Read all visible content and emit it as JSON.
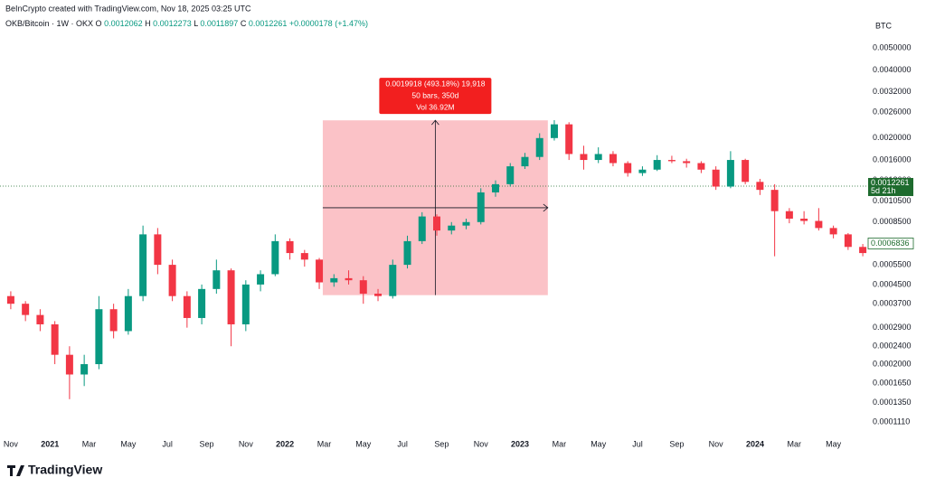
{
  "header": {
    "credit": "BeInCrypto created with TradingView.com, Nov 18, 2025 03:25 UTC",
    "symbol": "OKB/Bitcoin · 1W · OKX",
    "ohlc": [
      {
        "key": "O",
        "value": "0.0012062"
      },
      {
        "key": "H",
        "value": "0.0012273"
      },
      {
        "key": "L",
        "value": "0.0011897"
      },
      {
        "key": "C",
        "value": "0.0012261"
      }
    ],
    "change": "+0.0000178 (+1.47%)"
  },
  "logo": "TradingView",
  "chart_data": {
    "type": "candlestick",
    "y_unit": "BTC",
    "log_scale": true,
    "grid": false,
    "up_color": "#089981",
    "down_color": "#f23645",
    "xlim": [
      -0.55,
      43.68
    ],
    "ylim": [
      9.85e-05,
      0.00816
    ],
    "xticks": [
      {
        "value": 0,
        "label": "Nov"
      },
      {
        "value": 2,
        "label": "2021"
      },
      {
        "value": 4,
        "label": "Mar"
      },
      {
        "value": 6,
        "label": "May"
      },
      {
        "value": 8,
        "label": "Jul"
      },
      {
        "value": 10,
        "label": "Sep"
      },
      {
        "value": 12,
        "label": "Nov"
      },
      {
        "value": 14,
        "label": "2022"
      },
      {
        "value": 16,
        "label": "Mar"
      },
      {
        "value": 18,
        "label": "May"
      },
      {
        "value": 20,
        "label": "Jul"
      },
      {
        "value": 22,
        "label": "Sep"
      },
      {
        "value": 24,
        "label": "Nov"
      },
      {
        "value": 26,
        "label": "2023"
      },
      {
        "value": 28,
        "label": "Mar"
      },
      {
        "value": 30,
        "label": "May"
      },
      {
        "value": 32,
        "label": "Jul"
      },
      {
        "value": 34,
        "label": "Sep"
      },
      {
        "value": 36,
        "label": "Nov"
      },
      {
        "value": 38,
        "label": "2024"
      },
      {
        "value": 40,
        "label": "Mar"
      },
      {
        "value": 42,
        "label": "May"
      }
    ],
    "yticks": [
      {
        "value": 0.005,
        "label": "0.0050000"
      },
      {
        "value": 0.004,
        "label": "0.0040000"
      },
      {
        "value": 0.0032,
        "label": "0.0032000"
      },
      {
        "value": 0.0026,
        "label": "0.0026000"
      },
      {
        "value": 0.002,
        "label": "0.0020000"
      },
      {
        "value": 0.0016,
        "label": "0.0016000"
      },
      {
        "value": 0.0013,
        "label": "0.0013000"
      },
      {
        "value": 0.00105,
        "label": "0.0010500"
      },
      {
        "value": 0.00085,
        "label": "0.0008500"
      },
      {
        "value": 0.00055,
        "label": "0.0005500"
      },
      {
        "value": 0.00045,
        "label": "0.0004500"
      },
      {
        "value": 0.00037,
        "label": "0.0003700"
      },
      {
        "value": 0.00029,
        "label": "0.0002900"
      },
      {
        "value": 0.00024,
        "label": "0.0002400"
      },
      {
        "value": 0.0002,
        "label": "0.0002000"
      },
      {
        "value": 0.000165,
        "label": "0.0001650"
      },
      {
        "value": 0.000135,
        "label": "0.0001350"
      },
      {
        "value": 0.000111,
        "label": "0.0001110"
      }
    ],
    "x": [
      0,
      0.75,
      1.5,
      2.25,
      3,
      3.75,
      4.5,
      5.25,
      6,
      6.75,
      7.5,
      8.25,
      9,
      9.75,
      10.5,
      11.25,
      12,
      12.75,
      13.5,
      14.25,
      15,
      15.75,
      16.5,
      17.25,
      18,
      18.75,
      19.5,
      20.25,
      21,
      21.75,
      22.5,
      23.25,
      24,
      24.75,
      25.5,
      26.25,
      27,
      27.75,
      28.5,
      29.25,
      30,
      30.75,
      31.5,
      32.25,
      33,
      33.75,
      34.5,
      35.25,
      36,
      36.75,
      37.5,
      38.25,
      39,
      39.75,
      40.5,
      41.25,
      42,
      42.75,
      43.5
    ],
    "open": [
      0.0004,
      0.00037,
      0.00033,
      0.0003,
      0.00022,
      0.00018,
      0.0002,
      0.00035,
      0.00028,
      0.0004,
      0.00075,
      0.00055,
      0.0004,
      0.00032,
      0.00043,
      0.00052,
      0.0003,
      0.00045,
      0.0005,
      0.0007,
      0.00062,
      0.00058,
      0.00046,
      0.00048,
      0.00047,
      0.00041,
      0.0004,
      0.00055,
      0.0007,
      0.0009,
      0.00078,
      0.00082,
      0.00085,
      0.00115,
      0.00125,
      0.0015,
      0.00165,
      0.002,
      0.0023,
      0.0017,
      0.0016,
      0.0017,
      0.00155,
      0.0014,
      0.00145,
      0.0016,
      0.00158,
      0.00155,
      0.00145,
      0.00122,
      0.0016,
      0.00128,
      0.00118,
      0.00095,
      0.00088,
      0.00086,
      0.0008,
      0.00075,
      0.00066
    ],
    "high": [
      0.00042,
      0.00038,
      0.00035,
      0.00031,
      0.00024,
      0.00022,
      0.0004,
      0.00037,
      0.00043,
      0.00082,
      0.0008,
      0.00058,
      0.00042,
      0.00045,
      0.00058,
      0.00053,
      0.00047,
      0.00052,
      0.00075,
      0.00072,
      0.00064,
      0.00059,
      0.0005,
      0.00052,
      0.00049,
      0.00043,
      0.00058,
      0.00074,
      0.00094,
      0.00092,
      0.00085,
      0.00088,
      0.0012,
      0.0013,
      0.00155,
      0.00172,
      0.0021,
      0.0024,
      0.00235,
      0.00185,
      0.00182,
      0.00175,
      0.00158,
      0.0015,
      0.00168,
      0.00167,
      0.00162,
      0.00158,
      0.0015,
      0.00175,
      0.00162,
      0.00132,
      0.00125,
      0.00098,
      0.00095,
      0.00098,
      0.00082,
      0.00076,
      0.00068
    ],
    "low": [
      0.00035,
      0.00031,
      0.00028,
      0.0002,
      0.00014,
      0.00016,
      0.00019,
      0.00026,
      0.00027,
      0.00038,
      0.0005,
      0.00038,
      0.00029,
      0.0003,
      0.00041,
      0.00024,
      0.00028,
      0.00042,
      0.00049,
      0.00058,
      0.00054,
      0.00043,
      0.00044,
      0.00045,
      0.00037,
      0.00038,
      0.00039,
      0.00053,
      0.00068,
      0.00074,
      0.00075,
      0.00079,
      0.00083,
      0.0011,
      0.00122,
      0.00146,
      0.0016,
      0.00195,
      0.0016,
      0.00145,
      0.00155,
      0.0015,
      0.00135,
      0.00136,
      0.00143,
      0.00155,
      0.00148,
      0.0014,
      0.00118,
      0.0012,
      0.00125,
      0.00112,
      0.0006,
      0.00084,
      0.00083,
      0.00078,
      0.00072,
      0.00064,
      0.0006
    ],
    "close": [
      0.00037,
      0.00033,
      0.0003,
      0.00022,
      0.00018,
      0.0002,
      0.00035,
      0.00028,
      0.0004,
      0.00075,
      0.00055,
      0.0004,
      0.00032,
      0.00043,
      0.00052,
      0.0003,
      0.00045,
      0.0005,
      0.0007,
      0.00062,
      0.00058,
      0.00046,
      0.00048,
      0.00047,
      0.00041,
      0.0004,
      0.00055,
      0.0007,
      0.0009,
      0.00078,
      0.00082,
      0.00085,
      0.00115,
      0.00125,
      0.0015,
      0.00165,
      0.002,
      0.0023,
      0.0017,
      0.0016,
      0.0017,
      0.00155,
      0.0014,
      0.00145,
      0.0016,
      0.00158,
      0.00155,
      0.00145,
      0.00122,
      0.0016,
      0.00128,
      0.00118,
      0.00095,
      0.00088,
      0.00086,
      0.0008,
      0.00075,
      0.00066,
      0.00062
    ],
    "price_line": {
      "value": 0.0012261,
      "countdown": "5d 21h",
      "color": "#1e6b2e"
    },
    "marker_price": 0.0006836,
    "measure": {
      "x": [
        15.93,
        27.42
      ],
      "y": [
        0.0004039,
        0.0023957
      ],
      "lines": [
        "0.0019918 (493.18%) 19,918",
        "50 bars, 350d",
        "Vol 36.92M"
      ]
    }
  }
}
